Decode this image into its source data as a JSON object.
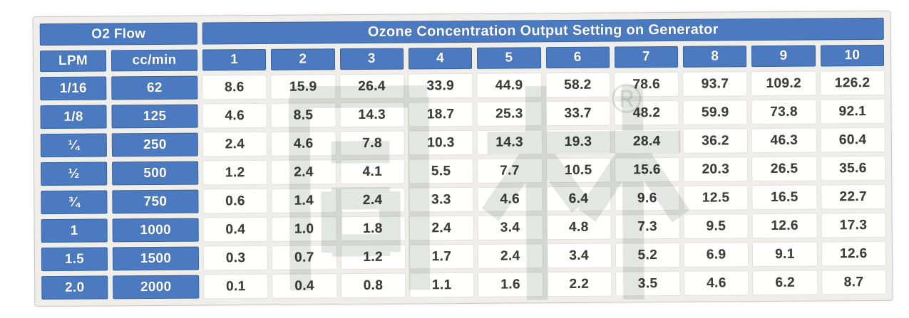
{
  "table": {
    "o2_flow_label": "O2 Flow",
    "title": "Ozone Concentration Output Setting on Generator",
    "flow_col_headers": [
      "LPM",
      "cc/min"
    ],
    "setting_col_headers": [
      "1",
      "2",
      "3",
      "4",
      "5",
      "6",
      "7",
      "8",
      "9",
      "10"
    ],
    "rows": [
      {
        "lpm": "1/16",
        "ccmin": "62",
        "values": [
          "8.6",
          "15.9",
          "26.4",
          "33.9",
          "44.9",
          "58.2",
          "78.6",
          "93.7",
          "109.2",
          "126.2"
        ]
      },
      {
        "lpm": "1/8",
        "ccmin": "125",
        "values": [
          "4.6",
          "8.5",
          "14.3",
          "18.7",
          "25.3",
          "33.7",
          "48.2",
          "59.9",
          "73.8",
          "92.1"
        ]
      },
      {
        "lpm": "¼",
        "ccmin": "250",
        "values": [
          "2.4",
          "4.6",
          "7.8",
          "10.3",
          "14.3",
          "19.3",
          "28.4",
          "36.2",
          "46.3",
          "60.4"
        ]
      },
      {
        "lpm": "½",
        "ccmin": "500",
        "values": [
          "1.2",
          "2.4",
          "4.1",
          "5.5",
          "7.7",
          "10.5",
          "15.6",
          "20.3",
          "26.5",
          "35.6"
        ]
      },
      {
        "lpm": "¾",
        "ccmin": "750",
        "values": [
          "0.6",
          "1.4",
          "2.4",
          "3.3",
          "4.6",
          "6.4",
          "9.6",
          "12.5",
          "16.5",
          "22.7"
        ]
      },
      {
        "lpm": "1",
        "ccmin": "1000",
        "values": [
          "0.4",
          "1.0",
          "1.8",
          "2.4",
          "3.4",
          "4.8",
          "7.3",
          "9.5",
          "12.6",
          "17.3"
        ]
      },
      {
        "lpm": "1.5",
        "ccmin": "1500",
        "values": [
          "0.3",
          "0.7",
          "1.2",
          "1.7",
          "2.4",
          "3.4",
          "5.2",
          "6.9",
          "9.1",
          "12.6"
        ]
      },
      {
        "lpm": "2.0",
        "ccmin": "2000",
        "values": [
          "0.1",
          "0.4",
          "0.8",
          "1.1",
          "1.6",
          "2.2",
          "3.5",
          "4.6",
          "6.2",
          "8.7"
        ]
      }
    ]
  },
  "watermark": {
    "text": "同林",
    "registered_mark": "®"
  },
  "colors": {
    "header_blue": "#4b7ac0",
    "header_blue_border": "#37639f",
    "header_text": "#ffffff",
    "data_text": "#3c3c3c",
    "panel_background": "#f0eeeb",
    "cell_background": "#fffffe",
    "watermark_gray_green": "#e2e7e3"
  }
}
